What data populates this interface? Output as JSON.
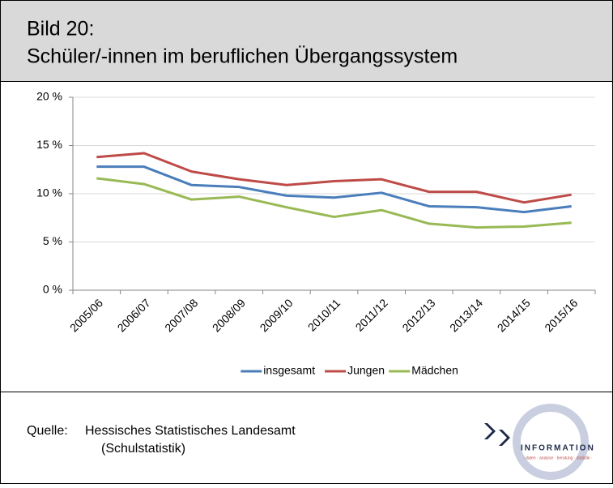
{
  "header": {
    "label": "Bild 20:",
    "title": "Schüler/-innen im beruflichen Übergangssystem"
  },
  "chart_data": {
    "type": "line",
    "categories": [
      "2005/06",
      "2006/07",
      "2007/08",
      "2008/09",
      "2009/10",
      "2010/11",
      "2011/12",
      "2012/13",
      "2013/14",
      "2014/15",
      "2015/16"
    ],
    "series": [
      {
        "name": "insgesamt",
        "color": "#4a7ebb",
        "values": [
          12.8,
          12.8,
          10.9,
          10.7,
          9.8,
          9.6,
          10.1,
          8.7,
          8.6,
          8.1,
          8.7
        ]
      },
      {
        "name": "Jungen",
        "color": "#be4b48",
        "values": [
          13.8,
          14.2,
          12.3,
          11.5,
          10.9,
          11.3,
          11.5,
          10.2,
          10.2,
          9.1,
          9.9
        ]
      },
      {
        "name": "Mädchen",
        "color": "#98b954",
        "values": [
          11.6,
          11.0,
          9.4,
          9.7,
          8.6,
          7.6,
          8.3,
          6.9,
          6.5,
          6.6,
          7.0
        ]
      }
    ],
    "ylim": [
      0,
      20
    ],
    "yticks": [
      {
        "value": 0,
        "label": "0 %"
      },
      {
        "value": 5,
        "label": "5 %"
      },
      {
        "value": 10,
        "label": "10 %"
      },
      {
        "value": 15,
        "label": "15 %"
      },
      {
        "value": 20,
        "label": "20 %"
      }
    ],
    "grid": true,
    "legend": "bottom"
  },
  "footer": {
    "source_label": "Quelle:",
    "source_lines": [
      "Hessisches Statistisches Landesamt",
      "(Schulstatistik)"
    ],
    "logo_text": "INFORMATION",
    "logo_tagline": "· daten · analyse · beratung · statistik ·"
  }
}
